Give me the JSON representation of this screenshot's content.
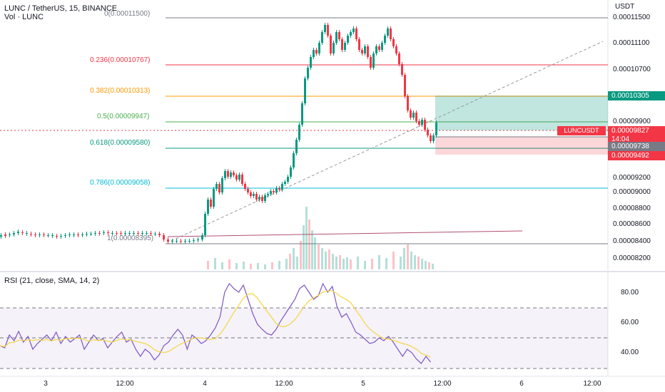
{
  "header": {
    "title": "LUNC / TetherUS, 15, BINANCE",
    "volume_label": "Vol · LUNC",
    "currency": "USDT"
  },
  "fib_levels": [
    {
      "label": "0(0.00011500)",
      "color": "#787b86"
    },
    {
      "label": "0.236(0.00010767)",
      "color": "#f23645"
    },
    {
      "label": "0.382(0.00010313)",
      "color": "#ff9800"
    },
    {
      "label": "0.5(0.00009947)",
      "color": "#4caf50"
    },
    {
      "label": "0.618(0.00009580)",
      "color": "#089981"
    },
    {
      "label": "0.786(0.00009058)",
      "color": "#00bcd4"
    },
    {
      "label": "1(0.00008395)",
      "color": "#787b86"
    }
  ],
  "price_axis": [
    "0.00011500",
    "0.00011100",
    "0.00010700",
    "0.00009900",
    "0.00009200",
    "0.00009000",
    "0.00008800",
    "0.00008600",
    "0.00008400",
    "0.00008200"
  ],
  "tags": {
    "target": "0.00010305",
    "symbol": "LUNCUSDT",
    "current": "0.00009827",
    "countdown": "14:04",
    "entry": "0.00009738",
    "stop": "0.00009492"
  },
  "rsi": {
    "title": "RSI (21, close, SMA, 14, 2)",
    "axis": [
      "80.00",
      "60.00",
      "40.00"
    ]
  },
  "time_axis": [
    "3",
    "12:00",
    "4",
    "12:00",
    "5",
    "12:00",
    "6",
    "12:00"
  ],
  "colors": {
    "up": "#089981",
    "down": "#f23645",
    "rsi": "#7e57c2",
    "rsi_ma": "#f5d63f"
  }
}
